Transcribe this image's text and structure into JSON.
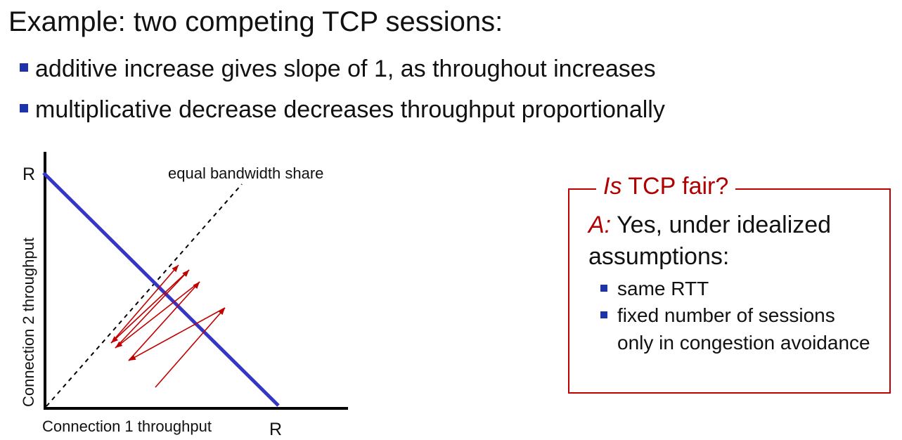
{
  "slide": {
    "title": "Example: two competing TCP sessions:",
    "bullets": [
      {
        "text": "additive increase gives slope of 1, as throughout increases"
      },
      {
        "text": "multiplicative decrease decreases throughput proportionally"
      }
    ]
  },
  "diagram": {
    "y_axis_label": "Connection 2 throughput",
    "x_axis_label": "Connection 1 throughput",
    "y_max_label": "R",
    "x_max_label": "R",
    "equal_share_label": "equal bandwidth share",
    "colors": {
      "capacity_line": "#3535c8",
      "arrows": "#c00000",
      "axes": "#000000"
    }
  },
  "fairness_box": {
    "heading_italic": "Is",
    "heading_rest": " TCP fair?",
    "answer_prefix": "A:",
    "answer_text": "Yes, under idealized assumptions:",
    "conditions": [
      {
        "text": "same RTT"
      },
      {
        "text": "fixed number of sessions only in congestion avoidance"
      }
    ]
  }
}
